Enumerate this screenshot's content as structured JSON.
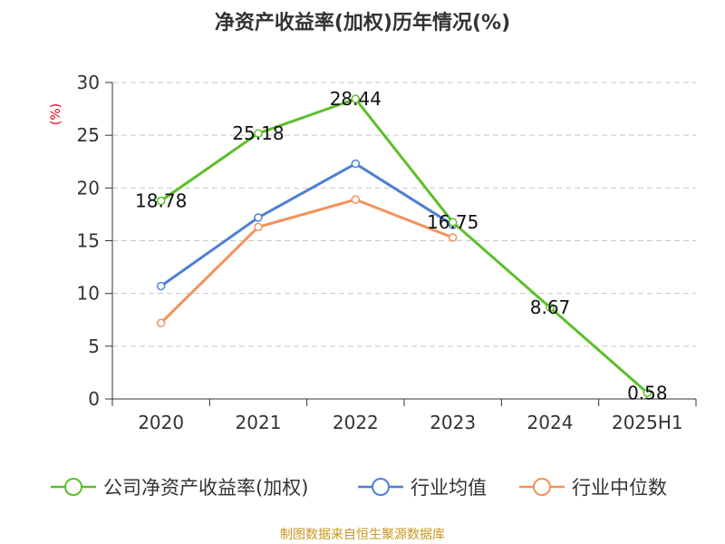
{
  "chart_data": {
    "type": "line",
    "title": "净资产收益率(加权)历年情况(%)",
    "ylabel": "(%)",
    "xlabel": "",
    "categories": [
      "2020",
      "2021",
      "2022",
      "2023",
      "2024",
      "2025H1"
    ],
    "ylim": [
      0,
      30
    ],
    "yticks": [
      0,
      5,
      10,
      15,
      20,
      25,
      30
    ],
    "grid": true,
    "legend_position": "bottom",
    "series": [
      {
        "name": "公司净资产收益率(加权)",
        "color": "#5cbf2a",
        "values": [
          18.78,
          25.18,
          28.44,
          16.75,
          8.67,
          0.58
        ],
        "labels": [
          "18.78",
          "25.18",
          "28.44",
          "16.75",
          "8.67",
          "0.58"
        ]
      },
      {
        "name": "行业均值",
        "color": "#4e7fd6",
        "values": [
          10.7,
          17.2,
          22.3,
          16.5,
          null,
          null
        ]
      },
      {
        "name": "行业中位数",
        "color": "#f4925a",
        "values": [
          7.2,
          16.3,
          18.9,
          15.3,
          null,
          null
        ]
      }
    ],
    "source": "制图数据来自恒生聚源数据库"
  }
}
